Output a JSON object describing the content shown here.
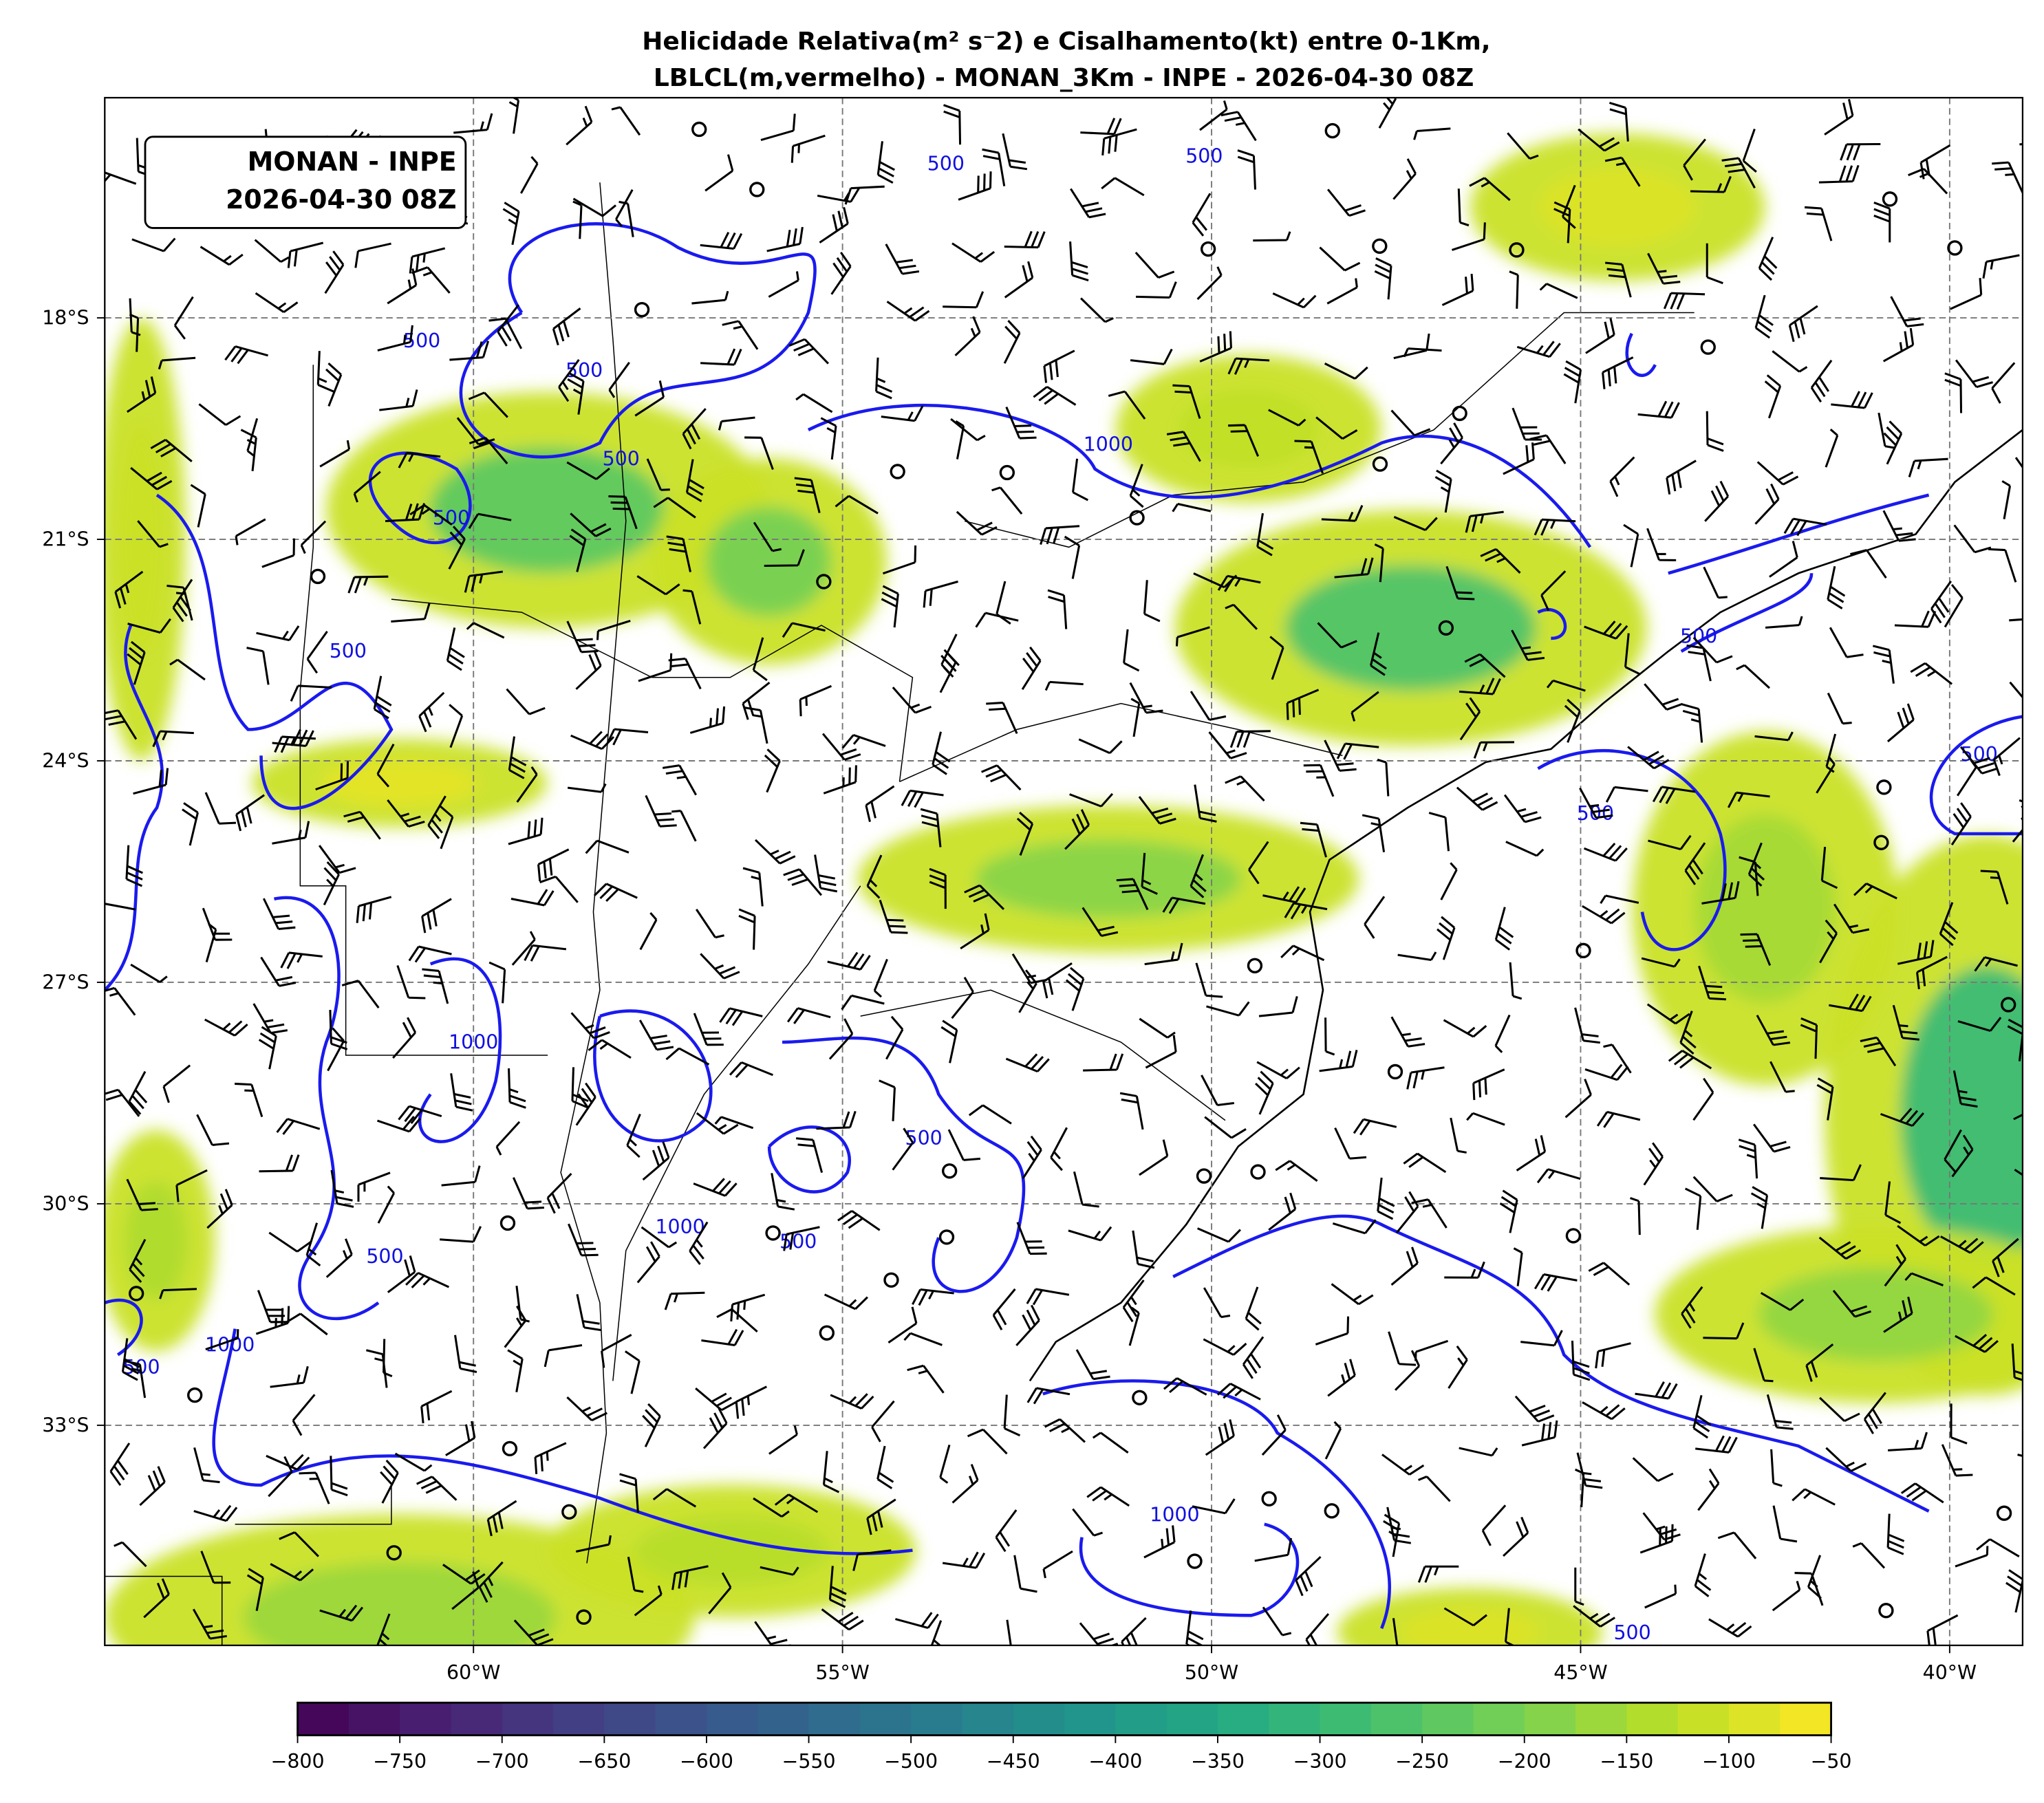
{
  "title": {
    "line1": "Helicidade Relativa(m² s⁻2) e Cisalhamento(kt) entre 0-1Km,",
    "line2": "LBLCL(m,vermelho) - MONAN_3Km - INPE - 2026-04-30 08Z"
  },
  "info_box": {
    "line1": "MONAN - INPE",
    "line2": "2026-04-30 08Z"
  },
  "chart_data": {
    "type": "heatmap",
    "projection": "lat-lon map",
    "xlim": [
      -65,
      -39
    ],
    "ylim": [
      -37,
      -15.5
    ],
    "x_ticks": [
      {
        "value": -60,
        "label": "60°W"
      },
      {
        "value": -55,
        "label": "55°W"
      },
      {
        "value": -50,
        "label": "50°W"
      },
      {
        "value": -45,
        "label": "45°W"
      },
      {
        "value": -40,
        "label": "40°W"
      }
    ],
    "y_ticks": [
      {
        "value": -18,
        "label": "18°S"
      },
      {
        "value": -21,
        "label": "21°S"
      },
      {
        "value": -24,
        "label": "24°S"
      },
      {
        "value": -27,
        "label": "27°S"
      },
      {
        "value": -30,
        "label": "30°S"
      },
      {
        "value": -33,
        "label": "33°S"
      }
    ],
    "grid": true,
    "fields": {
      "shaded": "Helicidade Relativa (m2 s-2)",
      "barbs": "Cisalhamento (kt)",
      "contours": "LBLCL (m)"
    },
    "colorbar": {
      "colormap": "viridis",
      "range": [
        -800,
        -50
      ],
      "step": 25,
      "orientation": "horizontal",
      "placement": "bottom",
      "tick_labels": [
        "−800",
        "−750",
        "−700",
        "−650",
        "−600",
        "−550",
        "−500",
        "−450",
        "−400",
        "−350",
        "−300",
        "−250",
        "−200",
        "−150",
        "−100",
        "−50"
      ]
    },
    "contour_levels": [
      500,
      1000
    ],
    "contour_color": "#1a1aee",
    "contour_labels": [
      {
        "text": "500",
        "lon": -60.7,
        "lat": -18.4
      },
      {
        "text": "500",
        "lon": -58.5,
        "lat": -18.8
      },
      {
        "text": "500",
        "lon": -58.0,
        "lat": -20.0
      },
      {
        "text": "500",
        "lon": -60.3,
        "lat": -20.8
      },
      {
        "text": "500",
        "lon": -61.7,
        "lat": -22.6
      },
      {
        "text": "1000",
        "lon": -51.4,
        "lat": -19.8
      },
      {
        "text": "500",
        "lon": -53.6,
        "lat": -16.0
      },
      {
        "text": "500",
        "lon": -50.1,
        "lat": -15.9
      },
      {
        "text": "500",
        "lon": -43.4,
        "lat": -22.4
      },
      {
        "text": "500",
        "lon": -44.8,
        "lat": -24.8
      },
      {
        "text": "500",
        "lon": -39.6,
        "lat": -24.0
      },
      {
        "text": "1000",
        "lon": -60.0,
        "lat": -27.9
      },
      {
        "text": "500",
        "lon": -53.9,
        "lat": -29.2
      },
      {
        "text": "1000",
        "lon": -57.2,
        "lat": -30.4
      },
      {
        "text": "500",
        "lon": -55.6,
        "lat": -30.6
      },
      {
        "text": "500",
        "lon": -61.2,
        "lat": -30.8
      },
      {
        "text": "1000",
        "lon": -63.3,
        "lat": -32.0
      },
      {
        "text": "500",
        "lon": -64.5,
        "lat": -32.3
      },
      {
        "text": "1000",
        "lon": -50.5,
        "lat": -34.3
      },
      {
        "text": "500",
        "lon": -44.3,
        "lat": -35.9
      }
    ]
  }
}
